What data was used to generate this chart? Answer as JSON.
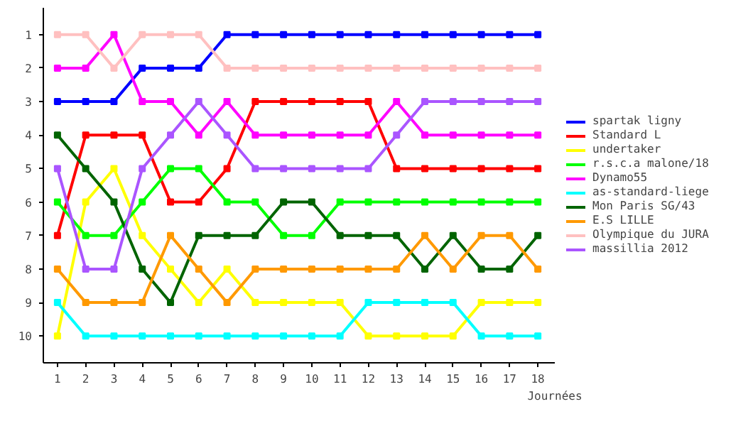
{
  "chart_data": {
    "type": "line",
    "xlabel": "Journées",
    "x": [
      1,
      2,
      3,
      4,
      5,
      6,
      7,
      8,
      9,
      10,
      11,
      12,
      13,
      14,
      15,
      16,
      17,
      18
    ],
    "xlim": [
      0.5,
      18.6
    ],
    "ylim": [
      10.8,
      0.2
    ],
    "xticks": [
      1,
      2,
      3,
      4,
      5,
      6,
      7,
      8,
      9,
      10,
      11,
      12,
      13,
      14,
      15,
      16,
      17,
      18
    ],
    "yticks": [
      1,
      2,
      3,
      4,
      5,
      6,
      7,
      8,
      9,
      10
    ],
    "grid": false,
    "legend": "right",
    "marker": "square",
    "line_style": "solid",
    "series": [
      {
        "name": "spartak ligny",
        "color": "#0000ff",
        "values": [
          3,
          3,
          3,
          2,
          2,
          2,
          1,
          1,
          1,
          1,
          1,
          1,
          1,
          1,
          1,
          1,
          1,
          1
        ]
      },
      {
        "name": "Standard L",
        "color": "#ff0000",
        "values": [
          7,
          4,
          4,
          4,
          6,
          6,
          5,
          3,
          3,
          3,
          3,
          3,
          5,
          5,
          5,
          5,
          5,
          5
        ]
      },
      {
        "name": "undertaker",
        "color": "#ffff00",
        "values": [
          10,
          6,
          5,
          7,
          8,
          9,
          8,
          9,
          9,
          9,
          9,
          10,
          10,
          10,
          10,
          9,
          9,
          9
        ]
      },
      {
        "name": "r.s.c.a malone/18",
        "color": "#00ff00",
        "values": [
          6,
          7,
          7,
          6,
          5,
          5,
          6,
          6,
          7,
          7,
          6,
          6,
          6,
          6,
          6,
          6,
          6,
          6
        ]
      },
      {
        "name": "Dynamo55",
        "color": "#ff00ff",
        "values": [
          2,
          2,
          1,
          3,
          3,
          4,
          3,
          4,
          4,
          4,
          4,
          4,
          3,
          4,
          4,
          4,
          4,
          4
        ]
      },
      {
        "name": "as-standard-liege",
        "color": "#00ffff",
        "values": [
          9,
          10,
          10,
          10,
          10,
          10,
          10,
          10,
          10,
          10,
          10,
          9,
          9,
          9,
          9,
          10,
          10,
          10
        ]
      },
      {
        "name": "Mon Paris SG/43",
        "color": "#006400",
        "values": [
          4,
          5,
          6,
          8,
          9,
          7,
          7,
          7,
          6,
          6,
          7,
          7,
          7,
          8,
          7,
          8,
          8,
          7
        ]
      },
      {
        "name": "E.S LILLE",
        "color": "#ff9900",
        "values": [
          8,
          9,
          9,
          9,
          7,
          8,
          9,
          8,
          8,
          8,
          8,
          8,
          8,
          7,
          8,
          7,
          7,
          8
        ]
      },
      {
        "name": "Olympique du JURA",
        "color": "#ffc0c0",
        "values": [
          1,
          1,
          2,
          1,
          1,
          1,
          2,
          2,
          2,
          2,
          2,
          2,
          2,
          2,
          2,
          2,
          2,
          2
        ]
      },
      {
        "name": "massillia 2012",
        "color": "#aa55ff",
        "values": [
          5,
          8,
          8,
          5,
          4,
          3,
          4,
          5,
          5,
          5,
          5,
          5,
          4,
          3,
          3,
          3,
          3,
          3
        ]
      }
    ]
  }
}
